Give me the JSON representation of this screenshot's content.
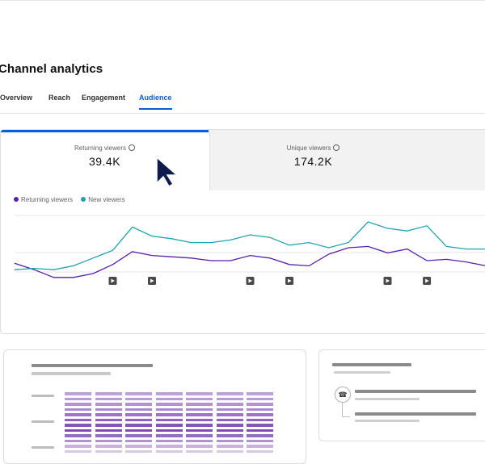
{
  "page": {
    "title": "Channel analytics"
  },
  "tabs": [
    {
      "label": "Overview",
      "active": false
    },
    {
      "label": "Reach",
      "active": false
    },
    {
      "label": "Engagement",
      "active": false
    },
    {
      "label": "Audience",
      "active": true
    }
  ],
  "metrics": [
    {
      "label": "Returning viewers",
      "value": "39.4K"
    },
    {
      "label": "Unique viewers",
      "value": "174.2K"
    }
  ],
  "legend": [
    {
      "label": "Returning viewers",
      "color": "#5a1fa8"
    },
    {
      "label": "New viewers",
      "color": "#1fa3b0"
    }
  ],
  "colors": {
    "accent": "#065fd4",
    "returning": "#5a1fa8",
    "new": "#1fa3b0"
  },
  "chart_data": {
    "type": "line",
    "x": [
      0,
      1,
      2,
      3,
      4,
      5,
      6,
      7,
      8,
      9,
      10,
      11,
      12,
      13,
      14,
      15,
      16,
      17,
      18,
      19,
      20,
      21,
      22,
      23,
      24
    ],
    "series": [
      {
        "name": "Returning viewers",
        "values": [
          13,
          8,
          2,
          2,
          5,
          12,
          22,
          19,
          18,
          17,
          15,
          15,
          19,
          17,
          12,
          11,
          20,
          25,
          26,
          21,
          24,
          15,
          16,
          14,
          11
        ]
      },
      {
        "name": "New viewers",
        "values": [
          8,
          9,
          8,
          11,
          17,
          23,
          41,
          34,
          32,
          29,
          29,
          31,
          35,
          33,
          27,
          29,
          25,
          29,
          45,
          40,
          38,
          42,
          26,
          24,
          24
        ]
      }
    ],
    "ylim": [
      0,
      50
    ],
    "grid": true,
    "legend_position": "top-left",
    "video_markers": [
      5,
      7,
      12,
      14,
      19,
      21
    ]
  },
  "heatmap": {
    "columns": 7,
    "rows": 12,
    "levels": [
      0.45,
      0.5,
      0.55,
      0.6,
      0.75,
      0.85,
      0.95,
      1.0,
      0.8,
      0.55,
      0.35,
      0.2
    ]
  }
}
